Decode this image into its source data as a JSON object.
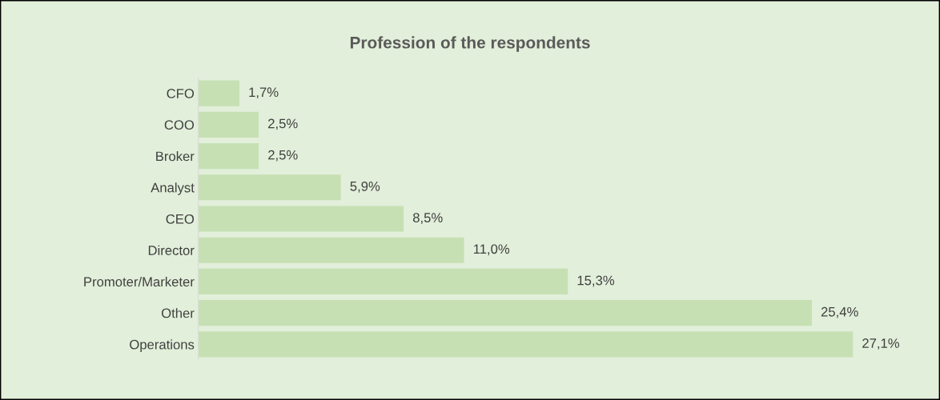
{
  "chart_data": {
    "type": "bar",
    "orientation": "horizontal",
    "title": "Profession of the respondents",
    "categories": [
      "CFO",
      "COO",
      "Broker",
      "Analyst",
      "CEO",
      "Director",
      "Promoter/Marketer",
      "Other",
      "Operations"
    ],
    "values": [
      1.7,
      2.5,
      2.5,
      5.9,
      8.5,
      11.0,
      15.3,
      25.4,
      27.1
    ],
    "value_labels": [
      "1,7%",
      "2,5%",
      "2,5%",
      "5,9%",
      "8,5%",
      "11,0%",
      "15,3%",
      "25,4%",
      "27,1%"
    ],
    "color": "#c6e0b4",
    "tick_labels": "y",
    "grid": false
  }
}
